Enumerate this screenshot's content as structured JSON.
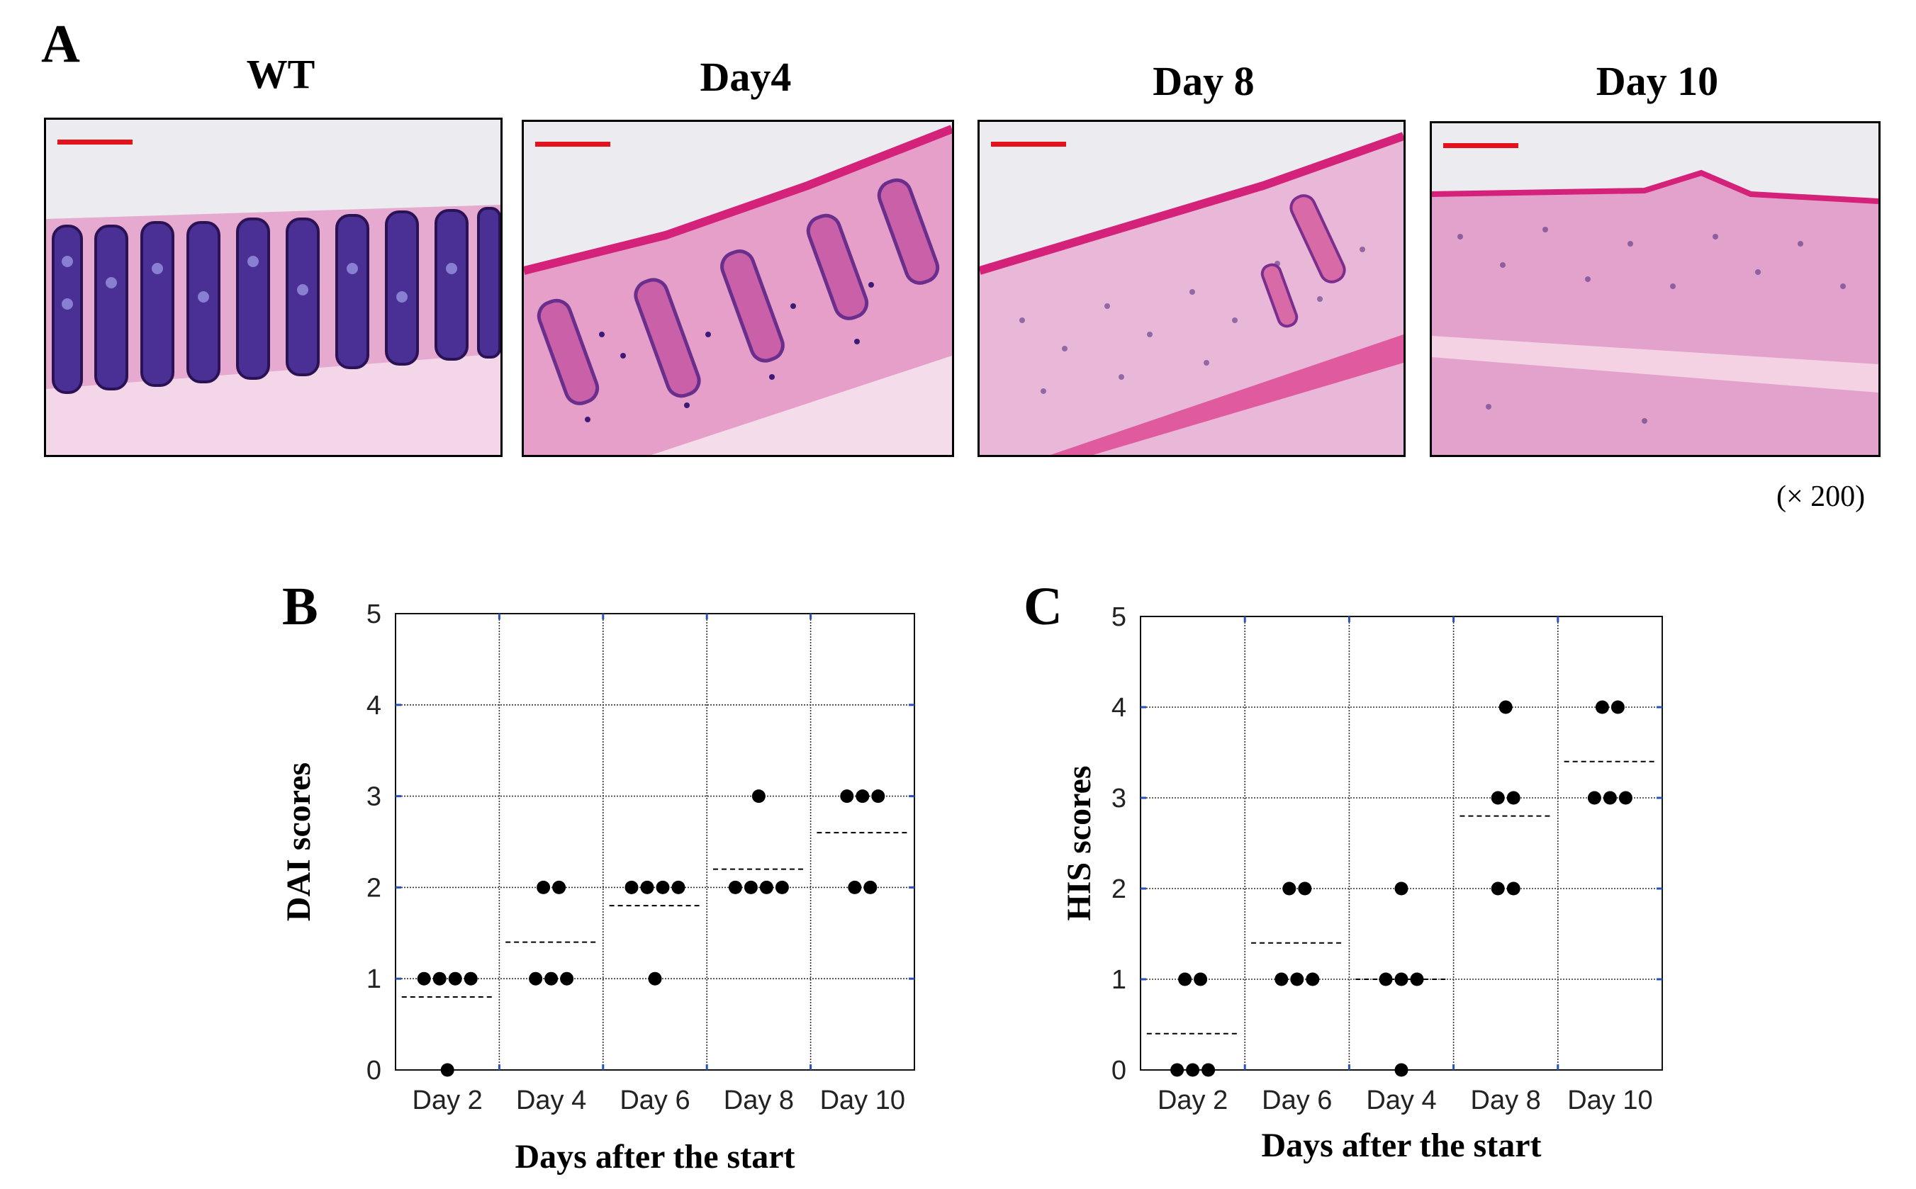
{
  "figure": {
    "panel_a_letter": "A",
    "panel_b_letter": "B",
    "panel_c_letter": "C",
    "magnification": "(× 200)",
    "scale_bar_color": "#e3121d",
    "he_stain_colors": {
      "eosin": "#e0559a",
      "hematoxylin": "#3b1a78",
      "background": "#f3eff2"
    }
  },
  "histology": [
    {
      "title": "WT"
    },
    {
      "title": "Day4"
    },
    {
      "title": "Day 8"
    },
    {
      "title": "Day 10"
    }
  ],
  "chart_data": [
    {
      "type": "scatter",
      "panel": "B",
      "categories": [
        "Day 2",
        "Day 4",
        "Day 6",
        "Day 8",
        "Day 10"
      ],
      "yticks": [
        "0",
        "1",
        "2",
        "3",
        "4",
        "5"
      ],
      "ylim": [
        0,
        5
      ],
      "ylabel": "DAI scores",
      "xlabel": "Days after the start",
      "grid": true,
      "series": [
        {
          "name": "Day 2",
          "values": [
            1,
            1,
            1,
            1,
            0
          ],
          "mean": 0.8
        },
        {
          "name": "Day 4",
          "values": [
            2,
            2,
            1,
            1,
            1
          ],
          "mean": 1.4
        },
        {
          "name": "Day 6",
          "values": [
            2,
            2,
            2,
            2,
            1
          ],
          "mean": 1.8
        },
        {
          "name": "Day 8",
          "values": [
            3,
            2,
            2,
            2,
            2
          ],
          "mean": 2.2
        },
        {
          "name": "Day 10",
          "values": [
            3,
            3,
            3,
            2,
            2
          ],
          "mean": 2.6
        }
      ]
    },
    {
      "type": "scatter",
      "panel": "C",
      "categories": [
        "Day 2",
        "Day 6",
        "Day 4",
        "Day 8",
        "Day 10"
      ],
      "yticks": [
        "0",
        "1",
        "2",
        "3",
        "4",
        "5"
      ],
      "ylim": [
        0,
        5
      ],
      "ylabel": "HIS scores",
      "xlabel": "Days after the start",
      "grid": true,
      "series": [
        {
          "name": "Day 2",
          "values": [
            1,
            1,
            0,
            0,
            0
          ],
          "mean": 0.4
        },
        {
          "name": "Day 6",
          "values": [
            2,
            2,
            1,
            1,
            1
          ],
          "mean": 1.4
        },
        {
          "name": "Day 4",
          "values": [
            2,
            1,
            1,
            1,
            0
          ],
          "mean": 1.0
        },
        {
          "name": "Day 8",
          "values": [
            4,
            3,
            3,
            2,
            2
          ],
          "mean": 2.8
        },
        {
          "name": "Day 10",
          "values": [
            4,
            4,
            3,
            3,
            3
          ],
          "mean": 3.4
        }
      ]
    }
  ]
}
